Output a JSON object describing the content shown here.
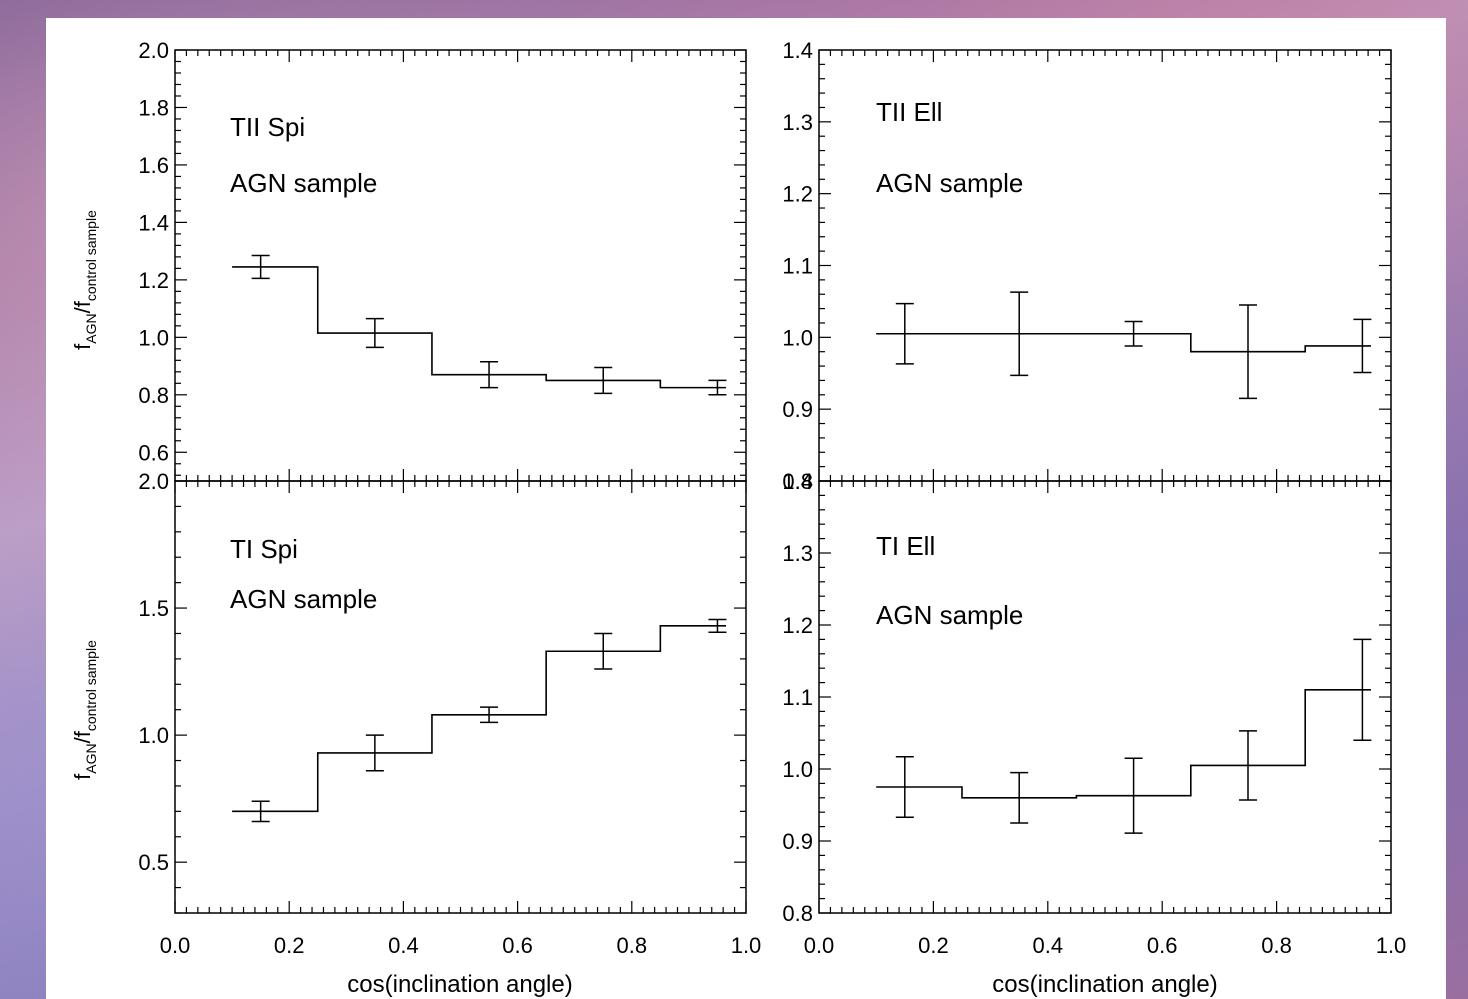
{
  "chart_data": [
    {
      "type": "step",
      "annotation_1": "TII Spi",
      "annotation_2": "AGN sample",
      "ylabel_main": "f",
      "ylabel_sub1": "AGN",
      "ylabel_slash": "/f",
      "ylabel_sub2": "control sample",
      "xlim": [
        0.0,
        1.0
      ],
      "ylim": [
        0.5,
        2.0
      ],
      "yticks": [
        0.6,
        0.8,
        1.0,
        1.2,
        1.4,
        1.6,
        1.8,
        2.0
      ],
      "yticklabels": [
        "0.6",
        "0.8",
        "1.0",
        "1.2",
        "1.4",
        "1.6",
        "1.8",
        "2.0"
      ],
      "bin_edges": [
        0.1,
        0.25,
        0.45,
        0.65,
        0.85,
        0.965
      ],
      "x": [
        0.15,
        0.35,
        0.55,
        0.75,
        0.95
      ],
      "y": [
        1.245,
        1.015,
        0.87,
        0.85,
        0.825
      ],
      "err": [
        0.04,
        0.05,
        0.045,
        0.045,
        0.025
      ]
    },
    {
      "type": "step",
      "annotation_1": "TII Ell",
      "annotation_2": "AGN sample",
      "xlim": [
        0.0,
        1.0
      ],
      "ylim": [
        0.8,
        1.4
      ],
      "yticks": [
        0.8,
        0.9,
        1.0,
        1.1,
        1.2,
        1.3,
        1.4
      ],
      "yticklabels": [
        "0.8",
        "0.9",
        "1.0",
        "1.1",
        "1.2",
        "1.3",
        "1.4"
      ],
      "bin_edges": [
        0.1,
        0.25,
        0.45,
        0.65,
        0.85,
        0.965
      ],
      "x": [
        0.15,
        0.35,
        0.55,
        0.75,
        0.95
      ],
      "y": [
        1.005,
        1.005,
        1.005,
        0.98,
        0.988
      ],
      "err": [
        0.042,
        0.058,
        0.017,
        0.065,
        0.037
      ]
    },
    {
      "type": "step",
      "annotation_1": "TI Spi",
      "annotation_2": "AGN sample",
      "ylabel_main": "f",
      "ylabel_sub1": "AGN",
      "ylabel_slash": "/f",
      "ylabel_sub2": "control sample",
      "xlabel": "cos(inclination angle)",
      "xlim": [
        0.0,
        1.0
      ],
      "ylim": [
        0.3,
        2.0
      ],
      "yticks": [
        0.5,
        1.0,
        1.5,
        2.0
      ],
      "yticklabels": [
        "0.5",
        "1.0",
        "1.5",
        "2.0"
      ],
      "xticks": [
        0.0,
        0.2,
        0.4,
        0.6,
        0.8,
        1.0
      ],
      "xticklabels": [
        "0.0",
        "0.2",
        "0.4",
        "0.6",
        "0.8",
        "1.0"
      ],
      "bin_edges": [
        0.1,
        0.25,
        0.45,
        0.65,
        0.85,
        0.965
      ],
      "x": [
        0.15,
        0.35,
        0.55,
        0.75,
        0.95
      ],
      "y": [
        0.7,
        0.93,
        1.08,
        1.33,
        1.43
      ],
      "err": [
        0.04,
        0.07,
        0.03,
        0.07,
        0.025
      ]
    },
    {
      "type": "step",
      "annotation_1": "TI Ell",
      "annotation_2": "AGN sample",
      "xlabel": "cos(inclination angle)",
      "xlim": [
        0.0,
        1.0
      ],
      "ylim": [
        0.8,
        1.4
      ],
      "yticks": [
        0.8,
        0.9,
        1.0,
        1.1,
        1.2,
        1.3,
        1.4
      ],
      "yticklabels": [
        "0.8",
        "0.9",
        "1.0",
        "1.1",
        "1.2",
        "1.3",
        "1.4"
      ],
      "xticks": [
        0.0,
        0.2,
        0.4,
        0.6,
        0.8,
        1.0
      ],
      "xticklabels": [
        "0.0",
        "0.2",
        "0.4",
        "0.6",
        "0.8",
        "1.0"
      ],
      "bin_edges": [
        0.1,
        0.25,
        0.45,
        0.65,
        0.85,
        0.965
      ],
      "x": [
        0.15,
        0.35,
        0.55,
        0.75,
        0.95
      ],
      "y": [
        0.975,
        0.96,
        0.963,
        1.005,
        1.11
      ],
      "err": [
        0.042,
        0.035,
        0.052,
        0.048,
        0.07
      ]
    }
  ]
}
